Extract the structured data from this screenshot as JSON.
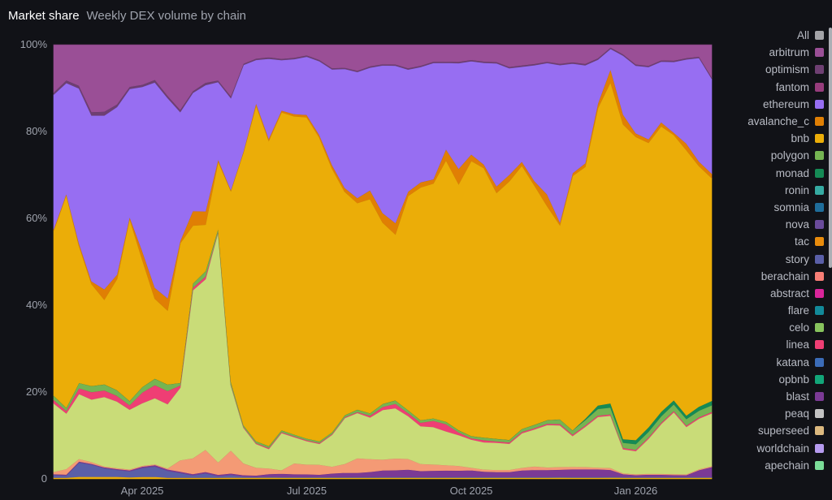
{
  "header": {
    "title": "Market share",
    "subtitle": "Weekly DEX volume by chain"
  },
  "axis": {
    "y_ticks": [
      "100%",
      "80%",
      "60%",
      "40%",
      "20%",
      "0"
    ],
    "x_ticks": [
      "Apr 2025",
      "Jul 2025",
      "Oct 2025",
      "Jan 2026"
    ]
  },
  "legend": {
    "items": [
      {
        "label": "All",
        "color": "#a4a4a8"
      },
      {
        "label": "arbitrum",
        "color": "#9a4f96"
      },
      {
        "label": "optimism",
        "color": "#6e3f72"
      },
      {
        "label": "fantom",
        "color": "#973c7c"
      },
      {
        "label": "ethereum",
        "color": "#976ef2"
      },
      {
        "label": "avalanche_c",
        "color": "#e07f04"
      },
      {
        "label": "bnb",
        "color": "#ebad08"
      },
      {
        "label": "polygon",
        "color": "#75b452"
      },
      {
        "label": "monad",
        "color": "#158a55"
      },
      {
        "label": "ronin",
        "color": "#35aaa2"
      },
      {
        "label": "somnia",
        "color": "#1f6d9a"
      },
      {
        "label": "nova",
        "color": "#6a4b9b"
      },
      {
        "label": "tac",
        "color": "#e88b0c"
      },
      {
        "label": "story",
        "color": "#5a5fa8"
      },
      {
        "label": "berachain",
        "color": "#f77e76"
      },
      {
        "label": "abstract",
        "color": "#d9259a"
      },
      {
        "label": "flare",
        "color": "#128a9a"
      },
      {
        "label": "celo",
        "color": "#87c35d"
      },
      {
        "label": "linea",
        "color": "#ef3e74"
      },
      {
        "label": "katana",
        "color": "#3b6cb8"
      },
      {
        "label": "opbnb",
        "color": "#12a679"
      },
      {
        "label": "blast",
        "color": "#7b3a95"
      },
      {
        "label": "peaq",
        "color": "#c3c3c3"
      },
      {
        "label": "superseed",
        "color": "#dcb97f"
      },
      {
        "label": "worldchain",
        "color": "#b69bef"
      },
      {
        "label": "apechain",
        "color": "#7bdc98"
      }
    ]
  },
  "chart_data": {
    "type": "area",
    "stacked": true,
    "normalized": true,
    "title": "Market share",
    "subtitle": "Weekly DEX volume by chain",
    "xlabel": "",
    "ylabel": "",
    "ylim": [
      0,
      100
    ],
    "y_unit": "%",
    "x_range": [
      "2025-01-27",
      "2026-02-02"
    ],
    "x_ticks": [
      "Apr 2025",
      "Jul 2025",
      "Oct 2025",
      "Jan 2026"
    ],
    "x_tick_index": [
      7,
      20,
      33,
      46
    ],
    "legend_position": "right",
    "grid": false,
    "series_order_bottom_to_top": [
      "superseed",
      "story",
      "blast",
      "berachain",
      "celo_lightgreen",
      "linea",
      "polygon",
      "monad",
      "bnb",
      "avalanche_c",
      "ethereum",
      "optimism",
      "arbitrum"
    ],
    "series": [
      {
        "name": "superseed",
        "color": "#ebad08",
        "values": [
          0.3,
          0.3,
          0.5,
          0.5,
          0.5,
          0.5,
          0.4,
          0.5,
          0.5,
          0.3,
          0.3,
          0.3,
          0.3,
          0.3,
          0.3,
          0.3,
          0.3,
          0.3,
          0.3,
          0.3,
          0.3,
          0.3,
          0.3,
          0.3,
          0.3,
          0.3,
          0.3,
          0.3,
          0.3,
          0.3,
          0.3,
          0.3,
          0.3,
          0.3,
          0.3,
          0.3,
          0.3,
          0.3,
          0.3,
          0.3,
          0.3,
          0.3,
          0.3,
          0.3,
          0.3,
          0.3,
          0.3,
          0.3,
          0.3,
          0.3,
          0.3,
          0.3,
          0.3
        ]
      },
      {
        "name": "story",
        "color": "#5a5fa8",
        "values": [
          0.6,
          0.5,
          3.3,
          2.8,
          2.0,
          1.6,
          1.4,
          2.1,
          2.4,
          1.6,
          1.1,
          0.6,
          1.0,
          0.4,
          0.6,
          0.3,
          0.2,
          0.2,
          0.2,
          0.2,
          0.2,
          0.2,
          0.2,
          0.2,
          0.2,
          0.2,
          0.2,
          0.2,
          0.2,
          0.2,
          0.2,
          0.2,
          0.2,
          0.2,
          0.2,
          0.2,
          0.2,
          0.2,
          0.2,
          0.2,
          0.2,
          0.2,
          0.2,
          0.2,
          0.2,
          0.2,
          0.2,
          0.2,
          0.2,
          0.2,
          0.2,
          0.2,
          0.2
        ]
      },
      {
        "name": "blast",
        "color": "#7b3a95",
        "values": [
          0.2,
          0.2,
          0.2,
          0.2,
          0.2,
          0.2,
          0.2,
          0.3,
          0.3,
          0.3,
          0.3,
          0.3,
          0.3,
          0.3,
          0.3,
          0.3,
          0.3,
          0.5,
          0.7,
          0.6,
          0.6,
          0.5,
          0.8,
          1.0,
          1.0,
          1.2,
          1.5,
          1.5,
          1.7,
          1.4,
          1.5,
          1.5,
          1.4,
          1.5,
          1.2,
          1.1,
          1.1,
          1.5,
          1.6,
          1.5,
          1.5,
          1.7,
          1.7,
          1.7,
          1.5,
          0.6,
          0.4,
          0.5,
          0.5,
          0.4,
          0.4,
          1.5,
          2.2
        ]
      },
      {
        "name": "berachain",
        "color": "#f49a75",
        "values": [
          0.5,
          1.3,
          0.6,
          0.4,
          0.2,
          0.2,
          0.2,
          0.2,
          0.2,
          0.2,
          2.6,
          3.8,
          5.0,
          3.0,
          5.0,
          2.8,
          1.8,
          1.2,
          0.8,
          2.5,
          2.3,
          2.3,
          1.6,
          2.1,
          3.5,
          3.1,
          2.5,
          2.7,
          2.5,
          1.7,
          1.5,
          1.3,
          1.1,
          0.6,
          0.5,
          0.5,
          0.5,
          0.6,
          0.8,
          0.6,
          0.6,
          0.6,
          0.5,
          0.4,
          0.4,
          0.2,
          0.2,
          0.2,
          0.2,
          0.2,
          0.2,
          0.2,
          0.2
        ]
      },
      {
        "name": "celo",
        "color": "#c9dc78",
        "values": [
          15.8,
          12.8,
          14.9,
          14.4,
          16.0,
          15.3,
          13.8,
          14.7,
          15.3,
          14.8,
          16.6,
          40.5,
          38.5,
          55.0,
          14.2,
          8.5,
          5.5,
          4.0,
          8.5,
          6.0,
          5.5,
          4.8,
          7.5,
          11.0,
          11.0,
          10.0,
          11.5,
          11.5,
          10.0,
          9.0,
          9.0,
          8.0,
          7.0,
          6.5,
          6.3,
          6.3,
          6.0,
          8.0,
          8.5,
          9.5,
          9.0,
          7.0,
          9.0,
          11.5,
          11.5,
          5.5,
          5.3,
          8.0,
          11.5,
          14.0,
          11.0,
          11.5,
          12.0
        ]
      },
      {
        "name": "linea",
        "color": "#ef3e74",
        "values": [
          0.8,
          0.6,
          1.3,
          1.7,
          1.5,
          1.3,
          1.0,
          2.5,
          3.0,
          3.0,
          0.5,
          0.6,
          0.6,
          0.2,
          0.2,
          0.2,
          0.2,
          0.2,
          0.2,
          0.2,
          0.2,
          0.2,
          0.2,
          0.2,
          0.2,
          0.4,
          0.7,
          1.0,
          0.7,
          0.8,
          1.5,
          1.7,
          0.6,
          0.3,
          0.5,
          0.3,
          0.3,
          0.3,
          0.3,
          0.3,
          0.3,
          0.3,
          0.3,
          0.3,
          0.3,
          0.3,
          0.3,
          0.3,
          0.3,
          0.3,
          0.3,
          0.3,
          0.3
        ]
      },
      {
        "name": "polygon",
        "color": "#75b452",
        "values": [
          1.0,
          0.7,
          1.2,
          1.4,
          1.4,
          1.3,
          1.0,
          1.3,
          1.5,
          1.5,
          0.6,
          1.0,
          1.2,
          0.6,
          0.6,
          0.4,
          0.4,
          0.4,
          0.4,
          0.4,
          0.4,
          0.4,
          0.4,
          0.5,
          0.6,
          0.6,
          0.7,
          0.8,
          0.7,
          0.6,
          0.6,
          0.6,
          0.5,
          0.5,
          0.6,
          0.6,
          0.6,
          0.7,
          0.8,
          0.8,
          1.0,
          1.0,
          1.2,
          1.5,
          1.5,
          1.2,
          1.3,
          1.3,
          1.5,
          1.5,
          1.5,
          1.5,
          1.5
        ]
      },
      {
        "name": "monad",
        "color": "#158a55",
        "values": [
          0,
          0,
          0,
          0,
          0,
          0,
          0,
          0,
          0,
          0,
          0,
          0,
          0,
          0,
          0,
          0,
          0,
          0,
          0,
          0,
          0,
          0,
          0,
          0,
          0,
          0,
          0,
          0,
          0,
          0,
          0,
          0,
          0,
          0,
          0,
          0,
          0,
          0,
          0,
          0,
          0,
          0,
          0.3,
          0.8,
          0.9,
          0.8,
          0.9,
          1.0,
          1.0,
          0.9,
          0.8,
          0.9,
          1.0
        ]
      },
      {
        "name": "bnb",
        "color": "#ebad08",
        "values": [
          38.0,
          49.0,
          31.5,
          23.5,
          19.5,
          25.5,
          42.0,
          30.0,
          18.5,
          17.0,
          32.0,
          14.0,
          10.5,
          16.0,
          41.5,
          65.0,
          77.5,
          63.0,
          72.5,
          73.0,
          75.5,
          70.0,
          62.0,
          53.5,
          50.0,
          51.5,
          42.0,
          38.0,
          50.0,
          55.5,
          56.5,
          62.0,
          56.0,
          63.5,
          62.5,
          57.0,
          59.5,
          61.0,
          55.0,
          48.0,
          42.0,
          58.0,
          56.5,
          67.5,
          70.5,
          72.0,
          69.5,
          65.0,
          66.0,
          60.0,
          61.5,
          54.5,
          50.5
        ]
      },
      {
        "name": "avalanche_c",
        "color": "#e07f04",
        "values": [
          0.3,
          0.3,
          0.5,
          0.6,
          2.4,
          1.0,
          0.4,
          2.0,
          2.5,
          2.8,
          0.5,
          3.5,
          3.0,
          0.5,
          0.2,
          0.2,
          0.5,
          0.4,
          0.4,
          0.5,
          0.5,
          0.6,
          0.8,
          0.9,
          1.2,
          2.1,
          2.2,
          2.6,
          1.0,
          1.2,
          1.0,
          2.6,
          3.5,
          1.5,
          0.8,
          1.5,
          1.5,
          0.9,
          1.0,
          2.6,
          0.6,
          0.6,
          0.8,
          1.0,
          2.8,
          2.2,
          0.8,
          0.8,
          0.9,
          0.5,
          1.5,
          1.0,
          1.0
        ]
      },
      {
        "name": "ethereum",
        "color": "#976ef2",
        "values": [
          31.0,
          25.5,
          35.5,
          38.2,
          40.0,
          38.5,
          29.5,
          38.5,
          47.5,
          46.0,
          29.5,
          28.5,
          28.5,
          18.5,
          20.0,
          20.5,
          10.0,
          16.5,
          11.5,
          12.6,
          13.7,
          17.0,
          22.5,
          28.5,
          30.5,
          29.5,
          34.2,
          36.0,
          28.5,
          27.5,
          28.0,
          20.5,
          24.0,
          21.5,
          23.6,
          28.5,
          24.5,
          22.0,
          26.7,
          29.5,
          34.0,
          25.0,
          22.0,
          10.0,
          4.5,
          13.5,
          15.5,
          16.5,
          14.0,
          16.0,
          19.5,
          23.5,
          21.5
        ]
      },
      {
        "name": "optimism",
        "color": "#6e3f72",
        "values": [
          0.5,
          0.6,
          0.6,
          0.8,
          0.9,
          0.6,
          0.5,
          0.5,
          0.6,
          0.5,
          0.5,
          0.4,
          0.5,
          0.4,
          0.4,
          0.3,
          0.3,
          0.3,
          0.3,
          0.3,
          0.3,
          0.3,
          0.3,
          0.3,
          0.3,
          0.3,
          0.3,
          0.3,
          0.3,
          0.3,
          0.3,
          0.3,
          0.3,
          0.3,
          0.3,
          0.3,
          0.3,
          0.3,
          0.3,
          0.3,
          0.3,
          0.3,
          0.3,
          0.3,
          0.3,
          0.3,
          0.3,
          0.3,
          0.3,
          0.3,
          0.3,
          0.3,
          0.3
        ]
      },
      {
        "name": "arbitrum",
        "color": "#9a4f96",
        "values": [
          11.0,
          8.2,
          9.4,
          15.5,
          15.4,
          13.7,
          9.7,
          9.4,
          8.1,
          11.7,
          14.9,
          11.2,
          8.6,
          8.5,
          11.2,
          4.5,
          3.2,
          2.6,
          3.2,
          3.0,
          2.5,
          3.5,
          5.5,
          5.5,
          6.3,
          5.2,
          4.5,
          4.5,
          5.5,
          5.0,
          4.1,
          4.0,
          3.9,
          3.5,
          3.9,
          4.0,
          5.1,
          4.8,
          4.4,
          3.8,
          4.1,
          4.0,
          4.3,
          3.1,
          0.6,
          2.2,
          4.5,
          4.8,
          3.6,
          3.6,
          3.1,
          2.7,
          7.4
        ]
      }
    ]
  }
}
